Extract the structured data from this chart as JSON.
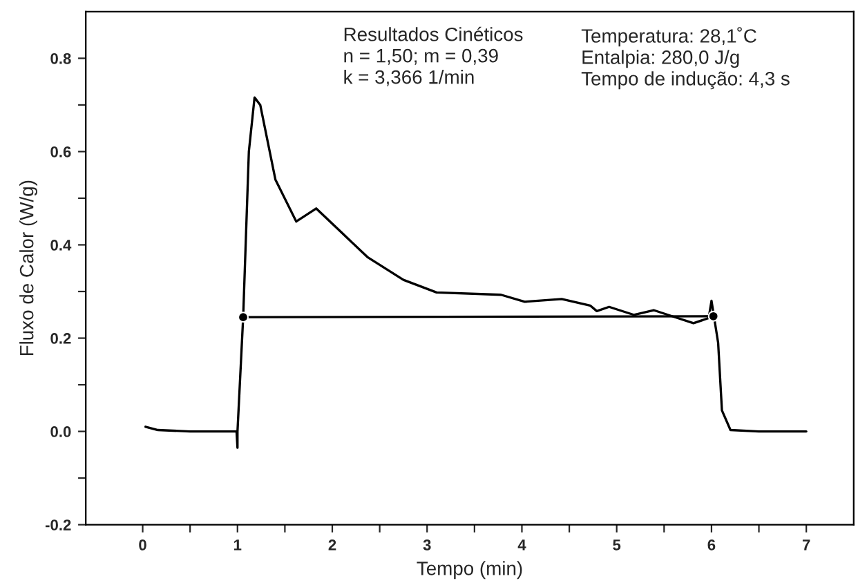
{
  "chart_data": {
    "type": "line",
    "xlabel": "Tempo (min)",
    "ylabel": "Fluxo de Calor (W/g)",
    "annotations": [
      "Resultados Cinéticos\nn = 1,50; m = 0,39\nk = 3,366 1/min",
      "Temperatura: 28,1˚C\nEntalpia: 280,0 J/g\nTempo de indução: 4,3 s"
    ],
    "series": [
      {
        "color": "#000000",
        "x": [
          0.03,
          0.16,
          0.5,
          0.99,
          1.0,
          1.0,
          1.06,
          1.12,
          1.18,
          1.24,
          1.4,
          1.62,
          1.83,
          2.08,
          2.37,
          2.75,
          3.1,
          3.78,
          4.03,
          4.42,
          4.72,
          4.79,
          4.92,
          5.18,
          5.39,
          5.6,
          5.81,
          5.97,
          6.0,
          6.07,
          6.11,
          6.2,
          6.5,
          7.0
        ],
        "values": [
          0.01,
          0.003,
          0.0,
          0.0,
          -0.035,
          0.0,
          0.245,
          0.6,
          0.716,
          0.7,
          0.54,
          0.45,
          0.478,
          0.43,
          0.374,
          0.325,
          0.298,
          0.293,
          0.278,
          0.284,
          0.27,
          0.258,
          0.267,
          0.25,
          0.26,
          0.246,
          0.232,
          0.243,
          0.28,
          0.19,
          0.045,
          0.003,
          0.0,
          0.0
        ]
      },
      {
        "color": "#000000",
        "x": [
          1.06,
          6.02
        ],
        "values": [
          0.245,
          0.247
        ],
        "marker": "circle"
      }
    ],
    "xlim": [
      -0.6,
      7.5
    ],
    "ylim": [
      -0.2,
      0.9
    ],
    "xticks": [
      0,
      1,
      2,
      3,
      4,
      5,
      6,
      7,
      {
        "value": 0.5,
        "label": null
      },
      {
        "value": 1.5,
        "label": null
      },
      {
        "value": 2.5,
        "label": null
      },
      {
        "value": 3.5,
        "label": null
      },
      {
        "value": 4.5,
        "label": null
      },
      {
        "value": 5.5,
        "label": null
      },
      {
        "value": 6.5,
        "label": null
      }
    ],
    "yticks": [
      -0.2,
      {
        "value": 0,
        "label": "0.0"
      },
      0.2,
      0.4,
      0.6,
      0.8,
      {
        "value": -0.1,
        "label": null
      },
      {
        "value": 0.1,
        "label": null
      },
      {
        "value": 0.3,
        "label": null
      },
      {
        "value": 0.5,
        "label": null
      },
      {
        "value": 0.7,
        "label": null
      }
    ],
    "grid": false,
    "legend": false,
    "line_style": "solid"
  }
}
